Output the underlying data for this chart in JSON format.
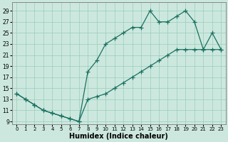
{
  "xlabel": "Humidex (Indice chaleur)",
  "bg_color": "#cce8de",
  "grid_color": "#99ccbb",
  "line_color": "#1a7060",
  "xlim": [
    -0.5,
    23.5
  ],
  "ylim": [
    8.5,
    30.5
  ],
  "xticks": [
    0,
    1,
    2,
    3,
    4,
    5,
    6,
    7,
    8,
    9,
    10,
    11,
    12,
    13,
    14,
    15,
    16,
    17,
    18,
    19,
    20,
    21,
    22,
    23
  ],
  "yticks": [
    9,
    11,
    13,
    15,
    17,
    19,
    21,
    23,
    25,
    27,
    29
  ],
  "upper_x": [
    0,
    1,
    2,
    3,
    4,
    5,
    6,
    7,
    8,
    9,
    10,
    11,
    12,
    13,
    14,
    15,
    16,
    17,
    18,
    19,
    20,
    21,
    22,
    23
  ],
  "upper_y": [
    14,
    13,
    12,
    11,
    10.5,
    10,
    9.5,
    9,
    18,
    20,
    23,
    24,
    25,
    26,
    26,
    29,
    27,
    27,
    28,
    29,
    27,
    22,
    25,
    22
  ],
  "lower_x": [
    0,
    1,
    2,
    3,
    4,
    5,
    6,
    7,
    8,
    9,
    10,
    11,
    12,
    13,
    14,
    15,
    16,
    17,
    18,
    19,
    20,
    21,
    22,
    23
  ],
  "lower_y": [
    14,
    13,
    12,
    11,
    10.5,
    10,
    9.5,
    9,
    13,
    13.5,
    14,
    15,
    16,
    17,
    18,
    19,
    20,
    21,
    22,
    22,
    22,
    22,
    22,
    22
  ]
}
